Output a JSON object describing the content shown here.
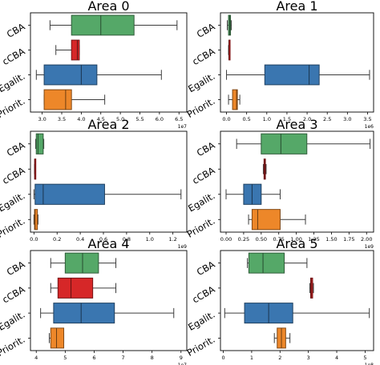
{
  "figure": {
    "categories": [
      "CBA",
      "cCBA",
      "Egalit.",
      "Priorit."
    ],
    "colors": {
      "CBA": "#55a868",
      "cCBA": "#d62728",
      "Egalit.": "#3a76b0",
      "Priorit.": "#ed8729"
    }
  },
  "chart_data": [
    {
      "type": "box",
      "title": "Area 0",
      "categories": [
        "CBA",
        "cCBA",
        "Egalit.",
        "Priorit."
      ],
      "xlim": [
        2.7,
        6.7
      ],
      "xticks": [
        3.0,
        3.5,
        4.0,
        4.5,
        5.0,
        5.5,
        6.0,
        6.5
      ],
      "xticklabels": [
        "3.0",
        "3.5",
        "4.0",
        "4.5",
        "5.0",
        "5.5",
        "6.0",
        "6.5"
      ],
      "scale_label": "1e7",
      "boxes": [
        {
          "category": "CBA",
          "whislo": 3.2,
          "q1": 3.75,
          "med": 4.5,
          "q3": 5.35,
          "whishi": 6.45
        },
        {
          "category": "cCBA",
          "whislo": 3.35,
          "q1": 3.75,
          "med": 3.9,
          "q3": 3.95,
          "whishi": 3.95
        },
        {
          "category": "Egalit.",
          "whislo": 2.85,
          "q1": 3.05,
          "med": 4.0,
          "q3": 4.4,
          "whishi": 6.05
        },
        {
          "category": "Priorit.",
          "whislo": 3.05,
          "q1": 3.05,
          "med": 3.6,
          "q3": 3.75,
          "whishi": 4.6
        }
      ]
    },
    {
      "type": "box",
      "title": "Area 1",
      "categories": [
        "CBA",
        "cCBA",
        "Egalit.",
        "Priorit."
      ],
      "xlim": [
        -0.15,
        3.65
      ],
      "xticks": [
        0.0,
        0.5,
        1.0,
        1.5,
        2.0,
        2.5,
        3.0,
        3.5
      ],
      "xticklabels": [
        "0.0",
        "0.5",
        "1.0",
        "1.5",
        "2.0",
        "2.5",
        "3.0",
        "3.5"
      ],
      "scale_label": "1e6",
      "boxes": [
        {
          "category": "CBA",
          "whislo": 0.02,
          "q1": 0.05,
          "med": 0.08,
          "q3": 0.1,
          "whishi": 0.12
        },
        {
          "category": "cCBA",
          "whislo": 0.05,
          "q1": 0.06,
          "med": 0.06,
          "q3": 0.07,
          "whishi": 0.07
        },
        {
          "category": "Egalit.",
          "whislo": 0.0,
          "q1": 0.95,
          "med": 2.05,
          "q3": 2.3,
          "whishi": 3.55
        },
        {
          "category": "Priorit.",
          "whislo": 0.05,
          "q1": 0.15,
          "med": 0.25,
          "q3": 0.27,
          "whishi": 0.33
        }
      ]
    },
    {
      "type": "box",
      "title": "Area 2",
      "categories": [
        "CBA",
        "cCBA",
        "Egalit.",
        "Priorit."
      ],
      "xlim": [
        -0.03,
        1.32
      ],
      "xticks": [
        0.0,
        0.2,
        0.4,
        0.6,
        0.8,
        1.0,
        1.2
      ],
      "xticklabels": [
        "0.0",
        "0.2",
        "0.4",
        "0.6",
        "0.8",
        "1.0",
        "1.2"
      ],
      "scale_label": "1e9",
      "boxes": [
        {
          "category": "CBA",
          "whislo": 0.015,
          "q1": 0.02,
          "med": 0.035,
          "q3": 0.08,
          "whishi": 0.085
        },
        {
          "category": "cCBA",
          "whislo": 0.005,
          "q1": 0.006,
          "med": 0.007,
          "q3": 0.008,
          "whishi": 0.009
        },
        {
          "category": "Egalit.",
          "whislo": 0.0,
          "q1": 0.01,
          "med": 0.08,
          "q3": 0.61,
          "whishi": 1.27
        },
        {
          "category": "Priorit.",
          "whislo": 0.0,
          "q1": 0.005,
          "med": 0.01,
          "q3": 0.03,
          "whishi": 0.035
        }
      ]
    },
    {
      "type": "box",
      "title": "Area 3",
      "categories": [
        "CBA",
        "cCBA",
        "Egalit.",
        "Priorit."
      ],
      "xlim": [
        -0.08,
        2.1
      ],
      "xticks": [
        0.0,
        0.25,
        0.5,
        0.75,
        1.0,
        1.25,
        1.5,
        1.75,
        2.0
      ],
      "xticklabels": [
        "0.00",
        "0.25",
        "0.50",
        "0.75",
        "1.00",
        "1.25",
        "1.50",
        "1.75",
        "2.00"
      ],
      "scale_label": "1e9",
      "boxes": [
        {
          "category": "CBA",
          "whislo": 0.15,
          "q1": 0.5,
          "med": 0.78,
          "q3": 1.15,
          "whishi": 2.05
        },
        {
          "category": "cCBA",
          "whislo": 0.53,
          "q1": 0.54,
          "med": 0.55,
          "q3": 0.56,
          "whishi": 0.57
        },
        {
          "category": "Egalit.",
          "whislo": 0.0,
          "q1": 0.25,
          "med": 0.37,
          "q3": 0.5,
          "whishi": 0.77
        },
        {
          "category": "Priorit.",
          "whislo": 0.32,
          "q1": 0.37,
          "med": 0.45,
          "q3": 0.77,
          "whishi": 1.13
        }
      ]
    },
    {
      "type": "box",
      "title": "Area 4",
      "categories": [
        "CBA",
        "cCBA",
        "Egalit.",
        "Priorit."
      ],
      "xlim": [
        3.8,
        9.2
      ],
      "xticks": [
        4,
        5,
        6,
        7,
        8,
        9
      ],
      "xticklabels": [
        "4",
        "5",
        "6",
        "7",
        "8",
        "9"
      ],
      "scale_label": "1e7",
      "boxes": [
        {
          "category": "CBA",
          "whislo": 4.5,
          "q1": 5.0,
          "med": 5.6,
          "q3": 6.15,
          "whishi": 6.75
        },
        {
          "category": "cCBA",
          "whislo": 4.5,
          "q1": 4.75,
          "med": 5.2,
          "q3": 5.95,
          "whishi": 6.75
        },
        {
          "category": "Egalit.",
          "whislo": 4.15,
          "q1": 4.6,
          "med": 5.55,
          "q3": 6.7,
          "whishi": 8.75
        },
        {
          "category": "Priorit.",
          "whislo": 4.45,
          "q1": 4.5,
          "med": 4.7,
          "q3": 4.95,
          "whishi": 4.95
        }
      ]
    },
    {
      "type": "box",
      "title": "Area 5",
      "categories": [
        "CBA",
        "cCBA",
        "Egalit.",
        "Priorit."
      ],
      "xlim": [
        -0.1,
        5.3
      ],
      "xticks": [
        0,
        1,
        2,
        3,
        4,
        5
      ],
      "xticklabels": [
        "0",
        "1",
        "2",
        "3",
        "4",
        "5"
      ],
      "scale_label": "1e8",
      "boxes": [
        {
          "category": "CBA",
          "whislo": 0.85,
          "q1": 0.9,
          "med": 1.4,
          "q3": 2.15,
          "whishi": 2.95
        },
        {
          "category": "cCBA",
          "whislo": 3.05,
          "q1": 3.08,
          "med": 3.1,
          "q3": 3.15,
          "whishi": 3.18
        },
        {
          "category": "Egalit.",
          "whislo": 0.05,
          "q1": 0.75,
          "med": 1.6,
          "q3": 2.45,
          "whishi": 5.15
        },
        {
          "category": "Priorit.",
          "whislo": 1.8,
          "q1": 1.9,
          "med": 2.05,
          "q3": 2.2,
          "whishi": 2.35
        }
      ]
    }
  ]
}
